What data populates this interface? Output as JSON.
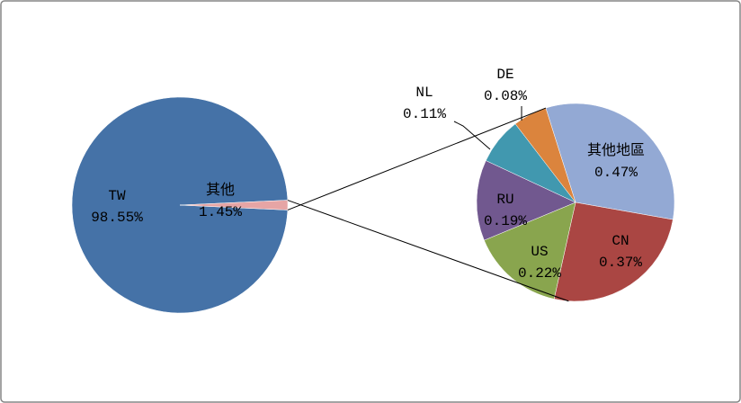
{
  "chart_data": [
    {
      "type": "pie",
      "categories": [
        "TW",
        "其他"
      ],
      "values": [
        98.55,
        1.45
      ],
      "value_labels": [
        "98.55%",
        "1.45%"
      ],
      "colors": [
        "#4572a7",
        "#e6a5a5"
      ]
    },
    {
      "type": "pie",
      "categories": [
        "其他地區",
        "CN",
        "US",
        "RU",
        "NL",
        "DE"
      ],
      "values": [
        0.47,
        0.37,
        0.22,
        0.19,
        0.11,
        0.08
      ],
      "value_labels": [
        "0.47%",
        "0.37%",
        "0.22%",
        "0.19%",
        "0.11%",
        "0.08%"
      ],
      "colors": [
        "#93a9d4",
        "#aa4643",
        "#89a54e",
        "#71588f",
        "#4198af",
        "#db843d"
      ]
    }
  ]
}
